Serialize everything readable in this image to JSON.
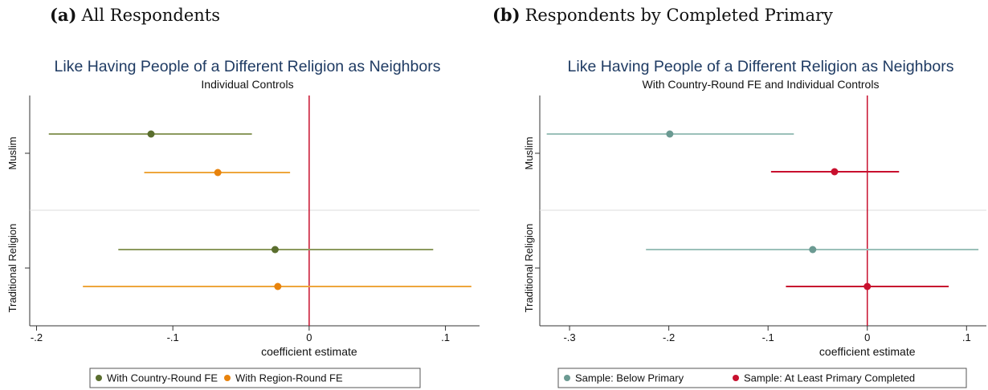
{
  "panels": [
    {
      "tag": "(a)",
      "caption": "All Respondents"
    },
    {
      "tag": "(b)",
      "caption": "Respondents by Completed Primary"
    }
  ],
  "chart_data": [
    {
      "type": "scatter",
      "title": "Like Having People of a Different Religion as Neighbors",
      "subtitle": "Individual Controls",
      "xlabel": "coefficient estimate",
      "ylabel": "",
      "xlim": [
        -0.205,
        0.125
      ],
      "xticks": [
        -0.2,
        -0.1,
        0,
        0.1
      ],
      "xtick_labels": [
        "-.2",
        "-.1",
        "0",
        ".1"
      ],
      "categories": [
        "Muslim",
        "Traditional Religion"
      ],
      "reference_line": 0,
      "reference_line_color": "#c8102e",
      "series": [
        {
          "name": "With Country-Round FE",
          "color": "#5a6e2e",
          "bar_color": "#8c9a5e",
          "points": [
            {
              "category": "Muslim",
              "estimate": -0.116,
              "ci_low": -0.191,
              "ci_high": -0.042
            },
            {
              "category": "Traditional Religion",
              "estimate": -0.025,
              "ci_low": -0.14,
              "ci_high": 0.091
            }
          ]
        },
        {
          "name": "With Region-Round FE",
          "color": "#e8830c",
          "bar_color": "#eea63c",
          "points": [
            {
              "category": "Muslim",
              "estimate": -0.067,
              "ci_low": -0.121,
              "ci_high": -0.014
            },
            {
              "category": "Traditional Religion",
              "estimate": -0.023,
              "ci_low": -0.166,
              "ci_high": 0.119
            }
          ]
        }
      ],
      "legend_position": "bottom",
      "grid": false
    },
    {
      "type": "scatter",
      "title": "Like Having People of a Different Religion as Neighbors",
      "subtitle": "With Country-Round FE and Individual Controls",
      "xlabel": "coefficient estimate",
      "ylabel": "",
      "xlim": [
        -0.33,
        0.12
      ],
      "xticks": [
        -0.3,
        -0.2,
        -0.1,
        0,
        0.1
      ],
      "xtick_labels": [
        "-.3",
        "-.2",
        "-.1",
        "0",
        ".1"
      ],
      "categories": [
        "Muslim",
        "Traditional Religion"
      ],
      "reference_line": 0,
      "reference_line_color": "#c8102e",
      "series": [
        {
          "name": "Sample: Below Primary",
          "color": "#6b9a92",
          "bar_color": "#9bc0b9",
          "points": [
            {
              "category": "Muslim",
              "estimate": -0.199,
              "ci_low": -0.323,
              "ci_high": -0.074
            },
            {
              "category": "Traditional Religion",
              "estimate": -0.055,
              "ci_low": -0.223,
              "ci_high": 0.112
            }
          ]
        },
        {
          "name": "Sample: At Least Primary Completed",
          "color": "#c8102e",
          "bar_color": "#c8102e",
          "points": [
            {
              "category": "Muslim",
              "estimate": -0.033,
              "ci_low": -0.097,
              "ci_high": 0.032
            },
            {
              "category": "Traditional Religion",
              "estimate": 0.0,
              "ci_low": -0.082,
              "ci_high": 0.082
            }
          ]
        }
      ],
      "legend_position": "bottom",
      "grid": false
    }
  ]
}
